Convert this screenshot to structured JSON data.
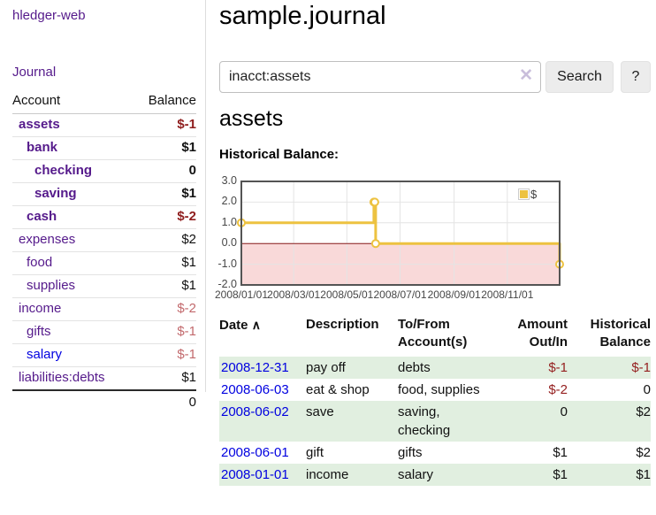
{
  "app": {
    "title": "hledger-web"
  },
  "sidebar": {
    "journal_label": "Journal",
    "headers": [
      "Account",
      "Balance"
    ],
    "rows": [
      {
        "account": "assets",
        "balance": "$-1",
        "level": 0,
        "bold": true,
        "neg": "strong",
        "link": "visited"
      },
      {
        "account": "bank",
        "balance": "$1",
        "level": 1,
        "bold": true,
        "neg": "",
        "link": "visited"
      },
      {
        "account": "checking",
        "balance": "0",
        "level": 2,
        "bold": true,
        "neg": "",
        "link": "visited"
      },
      {
        "account": "saving",
        "balance": "$1",
        "level": 2,
        "bold": true,
        "neg": "",
        "link": "visited"
      },
      {
        "account": "cash",
        "balance": "$-2",
        "level": 1,
        "bold": true,
        "neg": "strong",
        "link": "visited"
      },
      {
        "account": "expenses",
        "balance": "$2",
        "level": 0,
        "bold": false,
        "neg": "",
        "link": "visited"
      },
      {
        "account": "food",
        "balance": "$1",
        "level": 1,
        "bold": false,
        "neg": "",
        "link": "visited"
      },
      {
        "account": "supplies",
        "balance": "$1",
        "level": 1,
        "bold": false,
        "neg": "",
        "link": "visited"
      },
      {
        "account": "income",
        "balance": "$-2",
        "level": 0,
        "bold": false,
        "neg": "soft",
        "link": "visited"
      },
      {
        "account": "gifts",
        "balance": "$-1",
        "level": 1,
        "bold": false,
        "neg": "soft",
        "link": "visited"
      },
      {
        "account": "salary",
        "balance": "$-1",
        "level": 1,
        "bold": false,
        "neg": "soft",
        "link": "unvisited"
      },
      {
        "account": "liabilities:debts",
        "balance": "$1",
        "level": 0,
        "bold": false,
        "neg": "",
        "link": "visited"
      }
    ],
    "total": "0"
  },
  "main": {
    "title": "sample.journal",
    "search": {
      "value": "inacct:assets",
      "clear_icon": "✕",
      "button_label": "Search",
      "help_label": "?"
    },
    "account_heading": "assets",
    "chart_label": "Historical Balance:",
    "register": {
      "headers": {
        "date": "Date",
        "description": "Description",
        "accounts": "To/From\nAccount(s)",
        "amount": "Amount\nOut/In",
        "balance": "Historical\nBalance"
      },
      "sort_icon": "∧",
      "rows": [
        {
          "date": "2008-12-31",
          "description": "pay off",
          "accounts": "debts",
          "amount": "$-1",
          "balance": "$-1",
          "amount_neg": true,
          "balance_neg": true
        },
        {
          "date": "2008-06-03",
          "description": "eat & shop",
          "accounts": "food, supplies",
          "amount": "$-2",
          "balance": "0",
          "amount_neg": true,
          "balance_neg": false
        },
        {
          "date": "2008-06-02",
          "description": "save",
          "accounts": "saving,\nchecking",
          "amount": "0",
          "balance": "$2",
          "amount_neg": false,
          "balance_neg": false
        },
        {
          "date": "2008-06-01",
          "description": "gift",
          "accounts": "gifts",
          "amount": "$1",
          "balance": "$2",
          "amount_neg": false,
          "balance_neg": false
        },
        {
          "date": "2008-01-01",
          "description": "income",
          "accounts": "salary",
          "amount": "$1",
          "balance": "$1",
          "amount_neg": false,
          "balance_neg": false
        }
      ]
    }
  },
  "chart_data": {
    "type": "line",
    "title": "Historical Balance",
    "legend_position": "top-right",
    "x_range": [
      "2008-01-01",
      "2008-12-31"
    ],
    "y_range": [
      -2,
      3
    ],
    "x_ticks": [
      {
        "date": "2008-01-01",
        "label": "2008/01/01"
      },
      {
        "date": "2008-03-01",
        "label": "2008/03/01"
      },
      {
        "date": "2008-05-01",
        "label": "2008/05/01"
      },
      {
        "date": "2008-07-01",
        "label": "2008/07/01"
      },
      {
        "date": "2008-09-01",
        "label": "2008/09/01"
      },
      {
        "date": "2008-11-01",
        "label": "2008/11/01"
      }
    ],
    "y_ticks": [
      {
        "v": 3,
        "label": "3.0"
      },
      {
        "v": 2,
        "label": "2.0"
      },
      {
        "v": 1,
        "label": "1.0"
      },
      {
        "v": 0,
        "label": "0.0"
      },
      {
        "v": -1,
        "label": "-1.0"
      },
      {
        "v": -2,
        "label": "-2.0"
      }
    ],
    "series": [
      {
        "name": "$",
        "color": "#edc240",
        "steps": true,
        "points": [
          [
            "2008-01-01",
            1
          ],
          [
            "2008-06-01",
            2
          ],
          [
            "2008-06-02",
            2
          ],
          [
            "2008-06-03",
            0
          ],
          [
            "2008-12-31",
            -1
          ]
        ]
      }
    ],
    "negative_region_color": "#f9d9d9",
    "zero_line_color": "#8b1a1a",
    "grid_color": "#e4e4e4",
    "border_color": "#545454"
  },
  "colors": {
    "link_purple": "#551a8b",
    "link_blue": "#0000e0",
    "neg_strong": "#8f1d1d",
    "neg_soft": "#c2696c",
    "neg_table": "#952020",
    "row_green": "#e1efe0",
    "chart_line": "#edc240"
  }
}
